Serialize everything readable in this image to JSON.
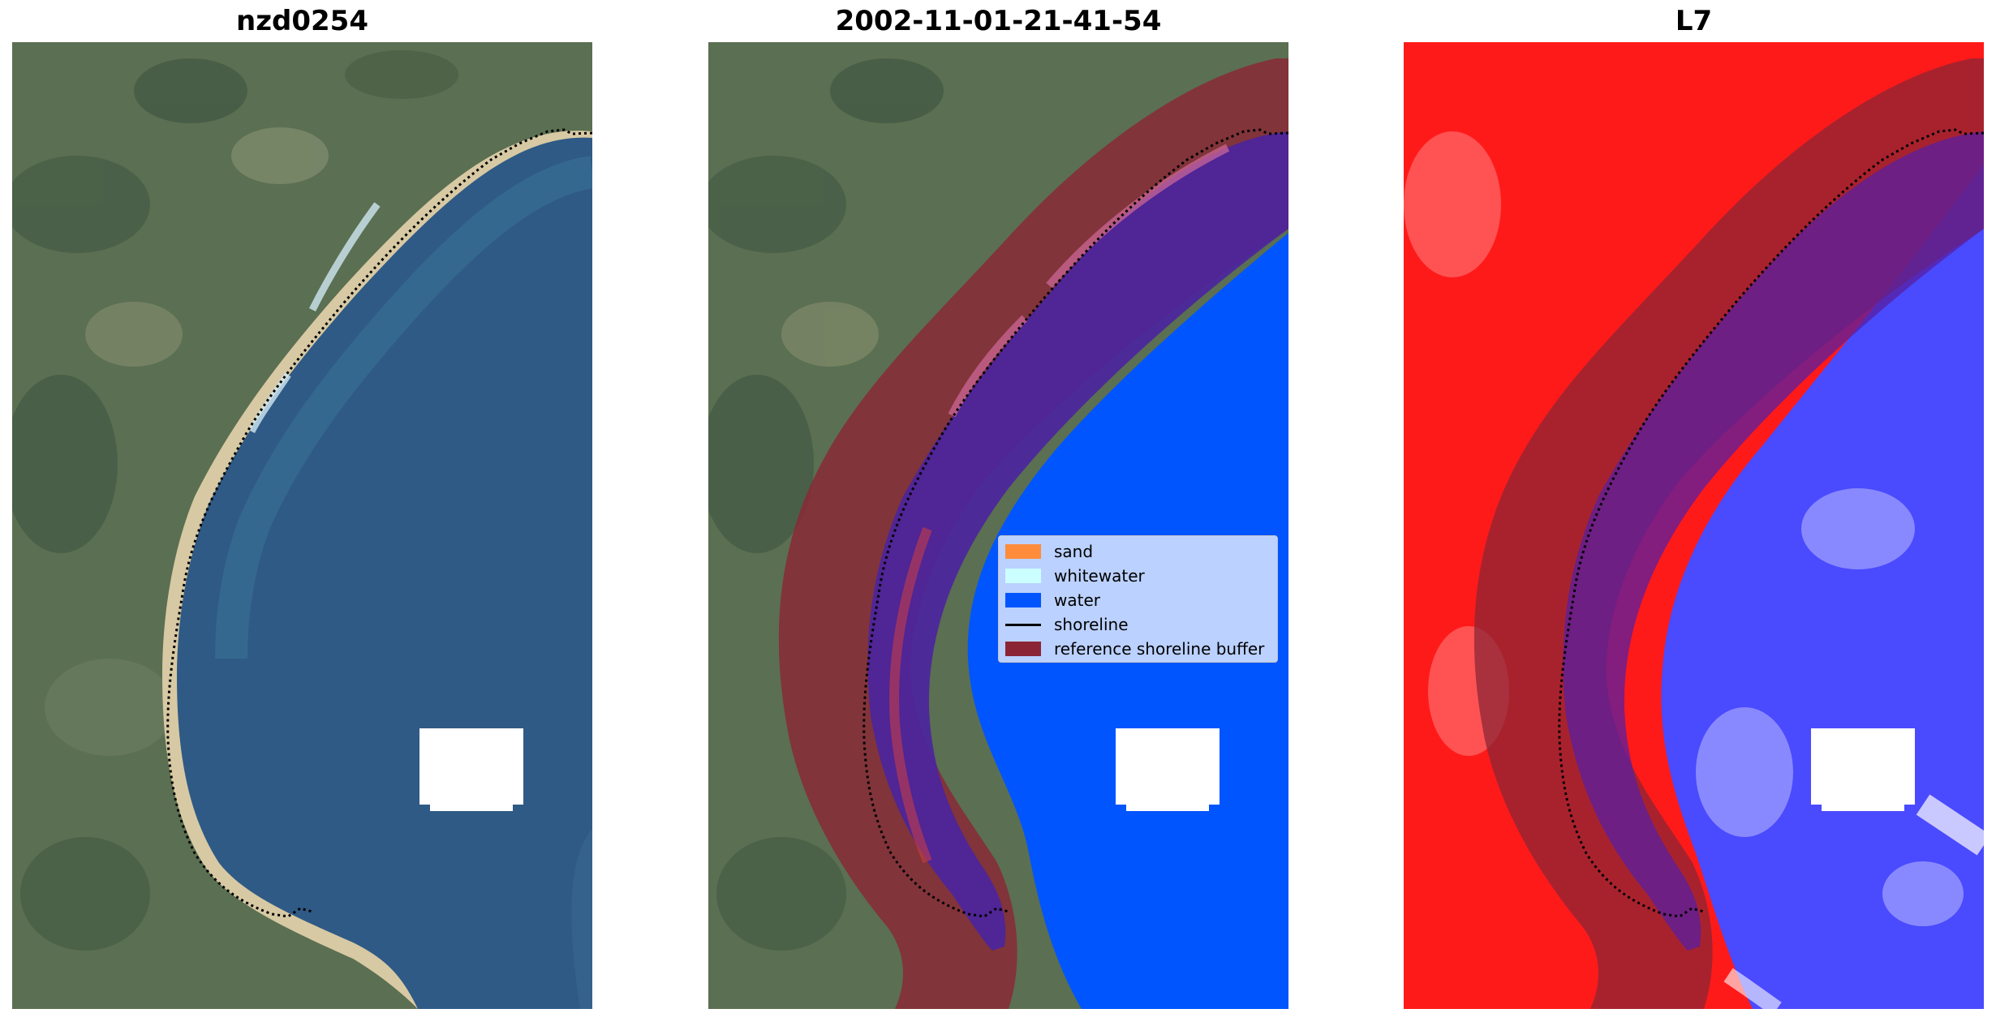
{
  "panels": [
    {
      "title": "nzd0254"
    },
    {
      "title": "2002-11-01-21-41-54"
    },
    {
      "title": "L7"
    }
  ],
  "legend": {
    "items": [
      {
        "label": "sand",
        "color": "#ff8c3b",
        "kind": "patch"
      },
      {
        "label": "whitewater",
        "color": "#ccffff",
        "kind": "patch"
      },
      {
        "label": "water",
        "color": "#0055ff",
        "kind": "patch"
      },
      {
        "label": "shoreline",
        "color": "#000000",
        "kind": "line"
      },
      {
        "label": "reference shoreline buffer",
        "color": "#8b2535",
        "kind": "patch"
      }
    ]
  },
  "colors": {
    "land_green": "#5b6f52",
    "sea_blue": "#2f5a86",
    "beach_sand": "#d7c9a3",
    "water_class": "#0055ff",
    "buffer": "#8b2535",
    "land_index": "#ff1a1a",
    "water_index": "#4a4aff",
    "cloud_mask": "#ffffff"
  }
}
